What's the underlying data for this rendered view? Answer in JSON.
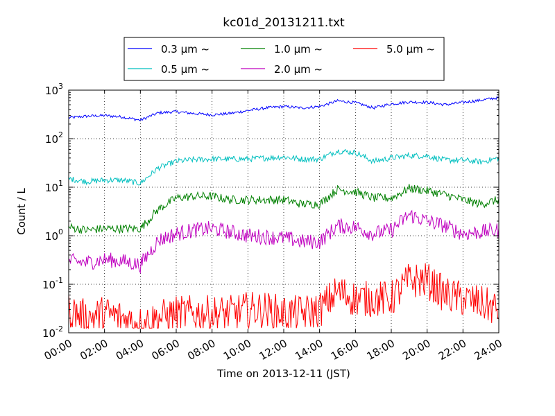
{
  "chart_data": {
    "type": "line",
    "title": "kc01d_20131211.txt",
    "xlabel": "Time on 2013-12-11 (JST)",
    "ylabel": "Count / L",
    "yscale": "log",
    "ylim": [
      0.01,
      1000
    ],
    "xlim": [
      "00:00",
      "24:00"
    ],
    "grid": true,
    "legend_position": "top",
    "x_tick_labels": [
      "00:00",
      "02:00",
      "04:00",
      "06:00",
      "08:00",
      "10:00",
      "12:00",
      "14:00",
      "16:00",
      "18:00",
      "20:00",
      "22:00",
      "24:00"
    ],
    "y_tick_labels": [
      {
        "base": "10",
        "exp": "-2"
      },
      {
        "base": "10",
        "exp": "-1"
      },
      {
        "base": "10",
        "exp": "0"
      },
      {
        "base": "10",
        "exp": "1"
      },
      {
        "base": "10",
        "exp": "2"
      },
      {
        "base": "10",
        "exp": "3"
      }
    ],
    "x": [
      "00:00",
      "01:00",
      "02:00",
      "03:00",
      "04:00",
      "05:00",
      "06:00",
      "07:00",
      "08:00",
      "09:00",
      "10:00",
      "11:00",
      "12:00",
      "13:00",
      "14:00",
      "15:00",
      "16:00",
      "17:00",
      "18:00",
      "19:00",
      "20:00",
      "21:00",
      "22:00",
      "23:00",
      "24:00"
    ],
    "series": [
      {
        "name": "0.3 μm ~",
        "color": "#0000ff",
        "values": [
          270,
          290,
          300,
          280,
          240,
          340,
          360,
          330,
          310,
          330,
          380,
          430,
          460,
          430,
          460,
          600,
          550,
          430,
          520,
          570,
          560,
          500,
          560,
          620,
          700
        ]
      },
      {
        "name": "0.5 μm ~",
        "color": "#00bfbf",
        "values": [
          15,
          13,
          14,
          14,
          12,
          25,
          34,
          37,
          38,
          38,
          38,
          40,
          42,
          38,
          38,
          56,
          52,
          34,
          40,
          45,
          44,
          36,
          36,
          33,
          40
        ]
      },
      {
        "name": "1.0 μm ~",
        "color": "#008000",
        "values": [
          1.5,
          1.3,
          1.4,
          1.4,
          1.4,
          3.5,
          6,
          6.5,
          6.5,
          5.5,
          5.5,
          5.5,
          5.5,
          4.5,
          4.5,
          9,
          8,
          6,
          6,
          9.5,
          8.5,
          7,
          5.5,
          4.5,
          5.5
        ]
      },
      {
        "name": "2.0 μm ~",
        "color": "#bf00bf",
        "values": [
          0.3,
          0.28,
          0.32,
          0.3,
          0.25,
          0.8,
          1.1,
          1.3,
          1.4,
          1.2,
          1.0,
          0.95,
          0.9,
          0.75,
          0.75,
          1.6,
          1.5,
          1.1,
          1.3,
          2.7,
          2.0,
          1.6,
          1.1,
          1.2,
          1.3
        ]
      },
      {
        "name": "5.0 μm ~",
        "color": "#ff0000",
        "values": [
          0.03,
          0.02,
          0.025,
          0.02,
          0.015,
          0.02,
          0.025,
          0.025,
          0.025,
          0.025,
          0.03,
          0.03,
          0.025,
          0.025,
          0.03,
          0.07,
          0.05,
          0.05,
          0.05,
          0.12,
          0.12,
          0.06,
          0.05,
          0.04,
          0.03
        ]
      }
    ]
  }
}
